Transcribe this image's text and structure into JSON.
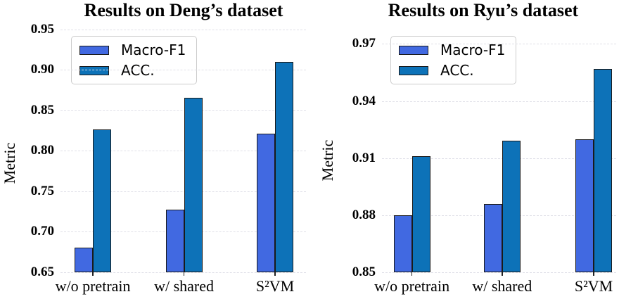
{
  "figure": {
    "background": "#ffffff"
  },
  "colors": {
    "macro_f1": "#4169e1",
    "acc": "#0d72b8",
    "bar_edge": "#1a1a1a",
    "grid": "#e0e0e8",
    "text": "#000000",
    "legend_border": "#cccccc"
  },
  "legend": {
    "items": [
      {
        "label": "Macro-F1",
        "color_key": "macro_f1"
      },
      {
        "label": "ACC.",
        "color_key": "acc"
      }
    ]
  },
  "chart_data": [
    {
      "type": "bar",
      "title": "Results on Deng’s dataset",
      "xlabel": "",
      "ylabel": "Metric",
      "categories": [
        "w/o pretrain",
        "w/ shared",
        "S²VM"
      ],
      "series": [
        {
          "name": "Macro-F1",
          "color": "#4169e1",
          "values": [
            0.68,
            0.727,
            0.821
          ]
        },
        {
          "name": "ACC.",
          "color": "#0d72b8",
          "values": [
            0.826,
            0.865,
            0.91
          ]
        }
      ],
      "yticks": [
        0.65,
        0.7,
        0.75,
        0.8,
        0.85,
        0.9,
        0.95
      ],
      "ylim": [
        0.65,
        0.96
      ],
      "grid": "horizontal-dashed",
      "legend_position": "upper-left"
    },
    {
      "type": "bar",
      "title": "Results on Ryu’s dataset",
      "xlabel": "",
      "ylabel": "Metric",
      "categories": [
        "w/o pretrain",
        "w/ shared",
        "S²VM"
      ],
      "series": [
        {
          "name": "Macro-F1",
          "color": "#4169e1",
          "values": [
            0.88,
            0.886,
            0.92
          ]
        },
        {
          "name": "ACC.",
          "color": "#0d72b8",
          "values": [
            0.911,
            0.919,
            0.957
          ]
        }
      ],
      "yticks": [
        0.85,
        0.88,
        0.91,
        0.94,
        0.97
      ],
      "ylim": [
        0.85,
        0.982
      ],
      "grid": "horizontal-dashed",
      "legend_position": "upper-left"
    }
  ]
}
